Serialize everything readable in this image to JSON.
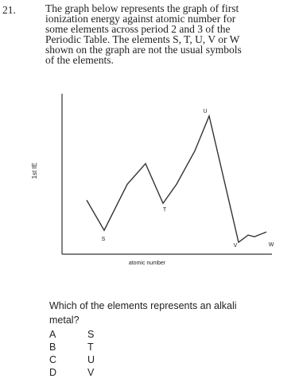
{
  "question": {
    "number": "21.",
    "lines": [
      "The graph below represents the graph of first",
      "ionization energy against atomic number for",
      "some elements across period 2 and 3 of the",
      "Periodic Table. The elements S, T, U, V or W",
      "shown on the graph are not the usual symbols",
      "of the elements."
    ],
    "graph": {
      "y_label": "1st IE",
      "x_label": "atomic number",
      "points": [
        "S",
        "T",
        "U",
        "V",
        "W"
      ]
    },
    "prompt": [
      "Which of the elements represents an alkali",
      "metal?"
    ],
    "options": [
      {
        "letter": "A",
        "text": "S"
      },
      {
        "letter": "B",
        "text": "T"
      },
      {
        "letter": "C",
        "text": "U"
      },
      {
        "letter": "D",
        "text": "V"
      }
    ]
  }
}
